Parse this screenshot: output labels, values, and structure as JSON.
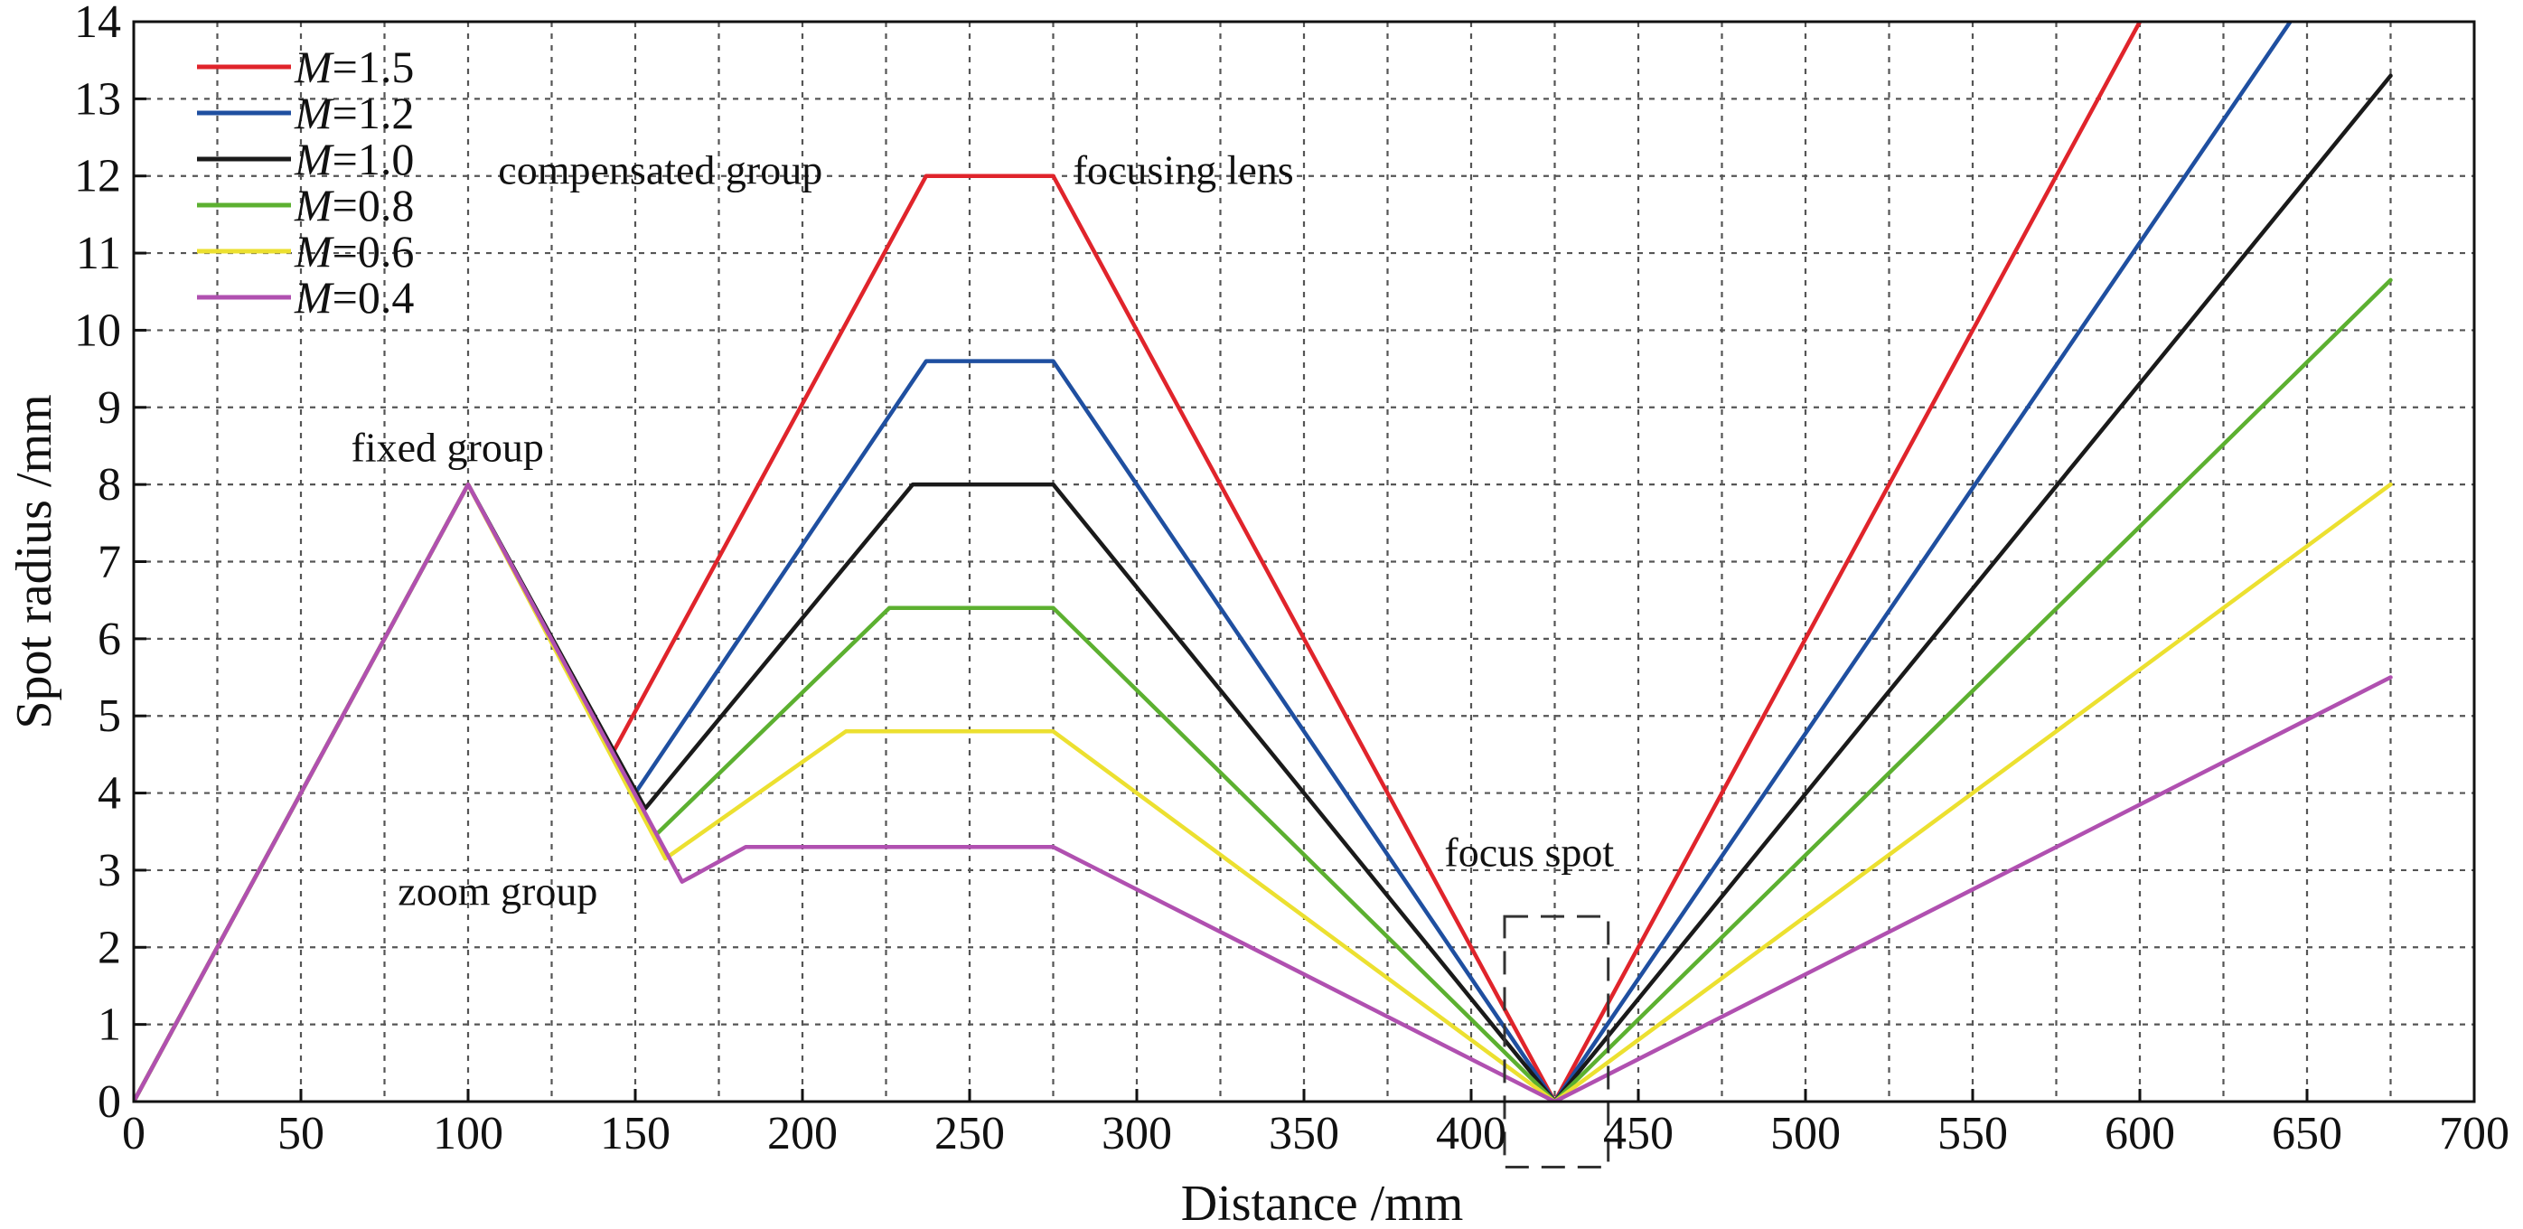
{
  "chart_data": {
    "type": "line",
    "xlabel": "Distance /mm",
    "ylabel": "Spot radius /mm",
    "xlim": [
      0,
      700
    ],
    "ylim": [
      0,
      14
    ],
    "xticks": [
      0,
      50,
      100,
      150,
      200,
      250,
      300,
      350,
      400,
      450,
      500,
      550,
      600,
      650,
      700
    ],
    "yticks": [
      0,
      1,
      2,
      3,
      4,
      5,
      6,
      7,
      8,
      9,
      10,
      11,
      12,
      13,
      14
    ],
    "grid_step": {
      "x": 25,
      "y": 1
    },
    "grid": true,
    "legend_position": "top-left",
    "series": [
      {
        "name": "M=1.5",
        "label_italic": "M",
        "label_rest": "=1.5",
        "color": "#e0242b",
        "points": [
          [
            0,
            0
          ],
          [
            100,
            8
          ],
          [
            143,
            4.5
          ],
          [
            237,
            12
          ],
          [
            275,
            12
          ],
          [
            425,
            0
          ],
          [
            600,
            14
          ]
        ]
      },
      {
        "name": "M=1.2",
        "label_italic": "M",
        "label_rest": "=1.2",
        "color": "#1f4fa0",
        "points": [
          [
            0,
            0
          ],
          [
            100,
            8
          ],
          [
            150,
            4.0
          ],
          [
            237,
            9.6
          ],
          [
            275,
            9.6
          ],
          [
            425,
            0
          ],
          [
            645,
            14
          ]
        ]
      },
      {
        "name": "M=1.0",
        "label_italic": "M",
        "label_rest": "=1.0",
        "color": "#1a1a1a",
        "points": [
          [
            0,
            0
          ],
          [
            100,
            8
          ],
          [
            153,
            3.8
          ],
          [
            233,
            8.0
          ],
          [
            275,
            8.0
          ],
          [
            425,
            0
          ],
          [
            675,
            13.3
          ]
        ]
      },
      {
        "name": "M=0.8",
        "label_italic": "M",
        "label_rest": "=0.8",
        "color": "#5cb030",
        "points": [
          [
            0,
            0
          ],
          [
            100,
            8
          ],
          [
            156,
            3.45
          ],
          [
            226,
            6.4
          ],
          [
            275,
            6.4
          ],
          [
            425,
            0
          ],
          [
            675,
            10.65
          ]
        ]
      },
      {
        "name": "M=0.6",
        "label_italic": "M",
        "label_rest": "=0.6",
        "color": "#ece030",
        "points": [
          [
            0,
            0
          ],
          [
            100,
            8
          ],
          [
            159,
            3.15
          ],
          [
            213,
            4.8
          ],
          [
            275,
            4.8
          ],
          [
            425,
            0
          ],
          [
            675,
            8.0
          ]
        ]
      },
      {
        "name": "M=0.4",
        "label_italic": "M",
        "label_rest": "=0.4",
        "color": "#b050b0",
        "points": [
          [
            0,
            0
          ],
          [
            100,
            8
          ],
          [
            164,
            2.85
          ],
          [
            183,
            3.3
          ],
          [
            275,
            3.3
          ],
          [
            425,
            0
          ],
          [
            675,
            5.5
          ]
        ]
      }
    ],
    "annotations": [
      {
        "text": "fixed group",
        "x": 65,
        "y": 8.3
      },
      {
        "text": "compensated group",
        "x": 109,
        "y": 11.9
      },
      {
        "text": "focusing lens",
        "x": 281,
        "y": 11.9
      },
      {
        "text": "zoom group",
        "x": 79,
        "y": 2.55
      },
      {
        "text": "focus spot",
        "x": 392,
        "y": 3.05
      }
    ],
    "focus_box": {
      "x0": 410,
      "x1": 441,
      "y0": -0.85,
      "y1": 2.4
    }
  }
}
